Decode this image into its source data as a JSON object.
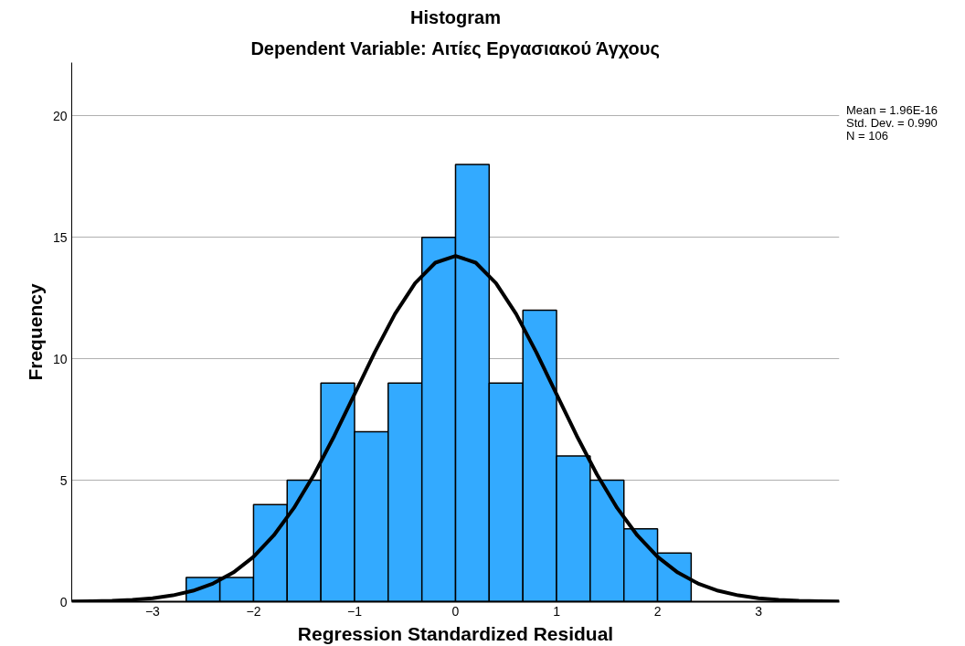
{
  "chart_data": {
    "type": "histogram",
    "title": "Histogram",
    "subtitle": "Dependent Variable: Αιτίες Εργασιακού Άγχους",
    "xlabel": "Regression Standardized Residual",
    "ylabel": "Frequency",
    "bins": [
      -2.667,
      -2.333,
      -2,
      -1.667,
      -1.333,
      -1,
      -0.667,
      -0.333,
      0,
      0.333,
      0.667,
      1,
      1.333,
      1.667,
      2,
      2.333
    ],
    "values": [
      1,
      1,
      4,
      5,
      9,
      7,
      9,
      15,
      18,
      9,
      12,
      6,
      5,
      3,
      2
    ],
    "color": "#33aaff",
    "series": [
      {
        "type": "line",
        "color": "#000000",
        "x": [
          -3.8,
          -3.6,
          -3.4,
          -3.2,
          -3.0,
          -2.8,
          -2.6,
          -2.4,
          -2.2,
          -2.0,
          -1.8,
          -1.6,
          -1.4,
          -1.2,
          -1.0,
          -0.8,
          -0.6,
          -0.4,
          -0.2,
          0,
          0.2,
          0.4,
          0.6,
          0.8,
          1.0,
          1.2,
          1.4,
          1.6,
          1.8,
          2.0,
          2.2,
          2.4,
          2.6,
          2.8,
          3.0,
          3.2,
          3.4,
          3.6,
          3.8
        ],
        "values": [
          0.01,
          0.02,
          0.04,
          0.08,
          0.14,
          0.26,
          0.45,
          0.75,
          1.2,
          1.85,
          2.73,
          3.86,
          5.24,
          6.83,
          8.55,
          10.27,
          11.85,
          13.12,
          13.96,
          14.24,
          13.96,
          13.12,
          11.85,
          10.27,
          8.55,
          6.83,
          5.24,
          3.86,
          2.73,
          1.85,
          1.2,
          0.75,
          0.45,
          0.26,
          0.14,
          0.08,
          0.04,
          0.02,
          0.01
        ]
      }
    ],
    "xlim": [
      -3.8,
      3.8
    ],
    "ylim": [
      0,
      22.2
    ],
    "xticks": [
      -3,
      -2,
      -1,
      0,
      1,
      2,
      3
    ],
    "yticks": [
      0,
      5,
      10,
      15,
      20
    ],
    "grid": "y",
    "annotations": [
      "Mean = 1.96E-16",
      "Std. Dev. = 0.990",
      "N = 106"
    ]
  }
}
